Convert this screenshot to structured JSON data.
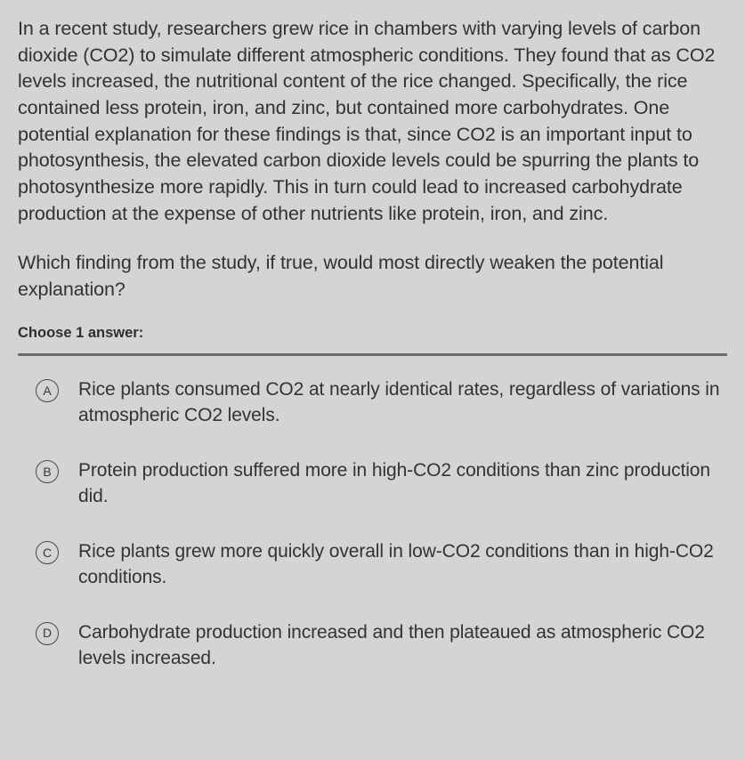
{
  "passage": "In a recent study, researchers grew rice in chambers with varying levels of carbon dioxide (CO2) to simulate different atmospheric conditions. They found that as CO2 levels increased, the nutritional content of the rice changed. Specifically, the rice contained less protein, iron, and zinc, but contained more carbohydrates. One potential explanation for these findings is that, since CO2 is an important input to photosynthesis, the elevated carbon dioxide levels could be spurring the plants to photosynthesize more rapidly. This in turn could lead to increased carbohydrate production at the expense of other nutrients like protein, iron, and zinc.",
  "question": "Which finding from the study, if true, would most directly weaken the potential explanation?",
  "choose_label": "Choose 1 answer:",
  "options": [
    {
      "letter": "A",
      "text": "Rice plants consumed CO2 at nearly identical rates, regardless of variations in atmospheric CO2 levels."
    },
    {
      "letter": "B",
      "text": "Protein production suffered more in high-CO2 conditions than zinc production did."
    },
    {
      "letter": "C",
      "text": "Rice plants grew more quickly overall in low-CO2 conditions than in high-CO2 conditions."
    },
    {
      "letter": "D",
      "text": "Carbohydrate production increased and then plateaued as atmospheric CO2 levels increased."
    }
  ],
  "colors": {
    "background": "#d4d4d2",
    "text": "#323232",
    "divider": "#6b6b6b",
    "circle_border": "#4a4a4a"
  }
}
